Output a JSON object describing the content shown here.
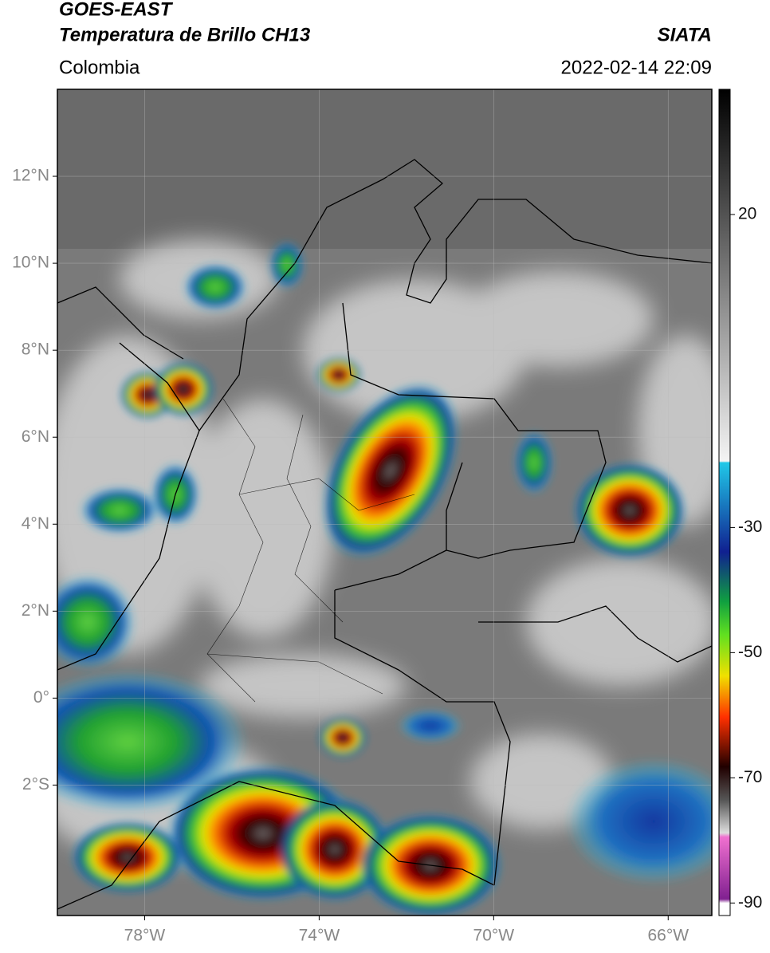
{
  "header": {
    "title": "GOES-EAST",
    "subtitle": "Temperatura de Brillo CH13",
    "source": "SIATA",
    "region": "Colombia",
    "datetime": "2022-02-14 22:09"
  },
  "map": {
    "xlim": [
      -80,
      -65
    ],
    "ylim": [
      -5,
      14
    ],
    "xticks": [
      {
        "value": -78,
        "label": "78°W"
      },
      {
        "value": -74,
        "label": "74°W"
      },
      {
        "value": -70,
        "label": "70°W"
      },
      {
        "value": -66,
        "label": "66°W"
      }
    ],
    "yticks": [
      {
        "value": 12,
        "label": "12°N"
      },
      {
        "value": 10,
        "label": "10°N"
      },
      {
        "value": 8,
        "label": "8°N"
      },
      {
        "value": 6,
        "label": "6°N"
      },
      {
        "value": 4,
        "label": "4°N"
      },
      {
        "value": 2,
        "label": "2°N"
      },
      {
        "value": 0,
        "label": "0°"
      },
      {
        "value": -2,
        "label": "2°S"
      }
    ],
    "grid": true
  },
  "colorbar": {
    "lim": [
      -92,
      40
    ],
    "ticks": [
      20,
      -30,
      -50,
      -70,
      -90
    ]
  }
}
